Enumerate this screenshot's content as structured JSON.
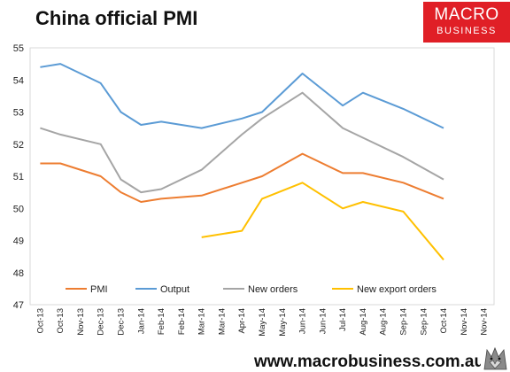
{
  "header": {
    "title": "China official PMI"
  },
  "logo": {
    "line1": "MACRO",
    "line2": "BUSINESS"
  },
  "footer": {
    "url": "www.macrobusiness.com.au"
  },
  "colors": {
    "pmi": "#ed7d31",
    "output": "#5b9bd5",
    "new_orders": "#a5a5a5",
    "new_export_orders": "#ffc000",
    "brand": "#e01f26"
  },
  "chart_data": {
    "type": "line",
    "title": "China official PMI",
    "xlabel": "",
    "ylabel": "",
    "ylim": [
      47,
      55
    ],
    "yticks": [
      47,
      48,
      49,
      50,
      51,
      52,
      53,
      54,
      55
    ],
    "grid": false,
    "legend_position": "bottom-inside",
    "categories": [
      "Oct-13",
      "Oct-13",
      "Nov-13",
      "Dec-13",
      "Dec-13",
      "Jan-14",
      "Feb-14",
      "Feb-14",
      "Mar-14",
      "Mar-14",
      "Apr-14",
      "May-14",
      "May-14",
      "Jun-14",
      "Jun-14",
      "Jul-14",
      "Aug-14",
      "Aug-14",
      "Sep-14",
      "Sep-14",
      "Oct-14",
      "Nov-14",
      "Nov-14"
    ],
    "series": [
      {
        "name": "PMI",
        "color": "#ed7d31",
        "values": [
          51.4,
          51.4,
          null,
          51.0,
          50.5,
          50.2,
          50.3,
          null,
          50.4,
          null,
          50.8,
          51.0,
          null,
          51.7,
          null,
          51.1,
          51.1,
          null,
          50.8,
          null,
          50.3,
          null,
          null
        ]
      },
      {
        "name": "Output",
        "color": "#5b9bd5",
        "values": [
          54.4,
          54.5,
          null,
          53.9,
          53.0,
          52.6,
          52.7,
          null,
          52.5,
          null,
          52.8,
          53.0,
          null,
          54.2,
          null,
          53.2,
          53.6,
          null,
          53.1,
          null,
          52.5,
          null,
          null
        ]
      },
      {
        "name": "New orders",
        "color": "#a5a5a5",
        "values": [
          52.5,
          52.3,
          null,
          52.0,
          50.9,
          50.5,
          50.6,
          null,
          51.2,
          null,
          52.3,
          52.8,
          null,
          53.6,
          null,
          52.5,
          52.2,
          null,
          51.6,
          null,
          50.9,
          null,
          null
        ]
      },
      {
        "name": "New export orders",
        "color": "#ffc000",
        "values": [
          null,
          null,
          null,
          null,
          null,
          null,
          null,
          null,
          49.1,
          null,
          49.3,
          50.3,
          null,
          50.8,
          null,
          50.0,
          50.2,
          null,
          49.9,
          null,
          48.4,
          null,
          null
        ]
      }
    ]
  }
}
